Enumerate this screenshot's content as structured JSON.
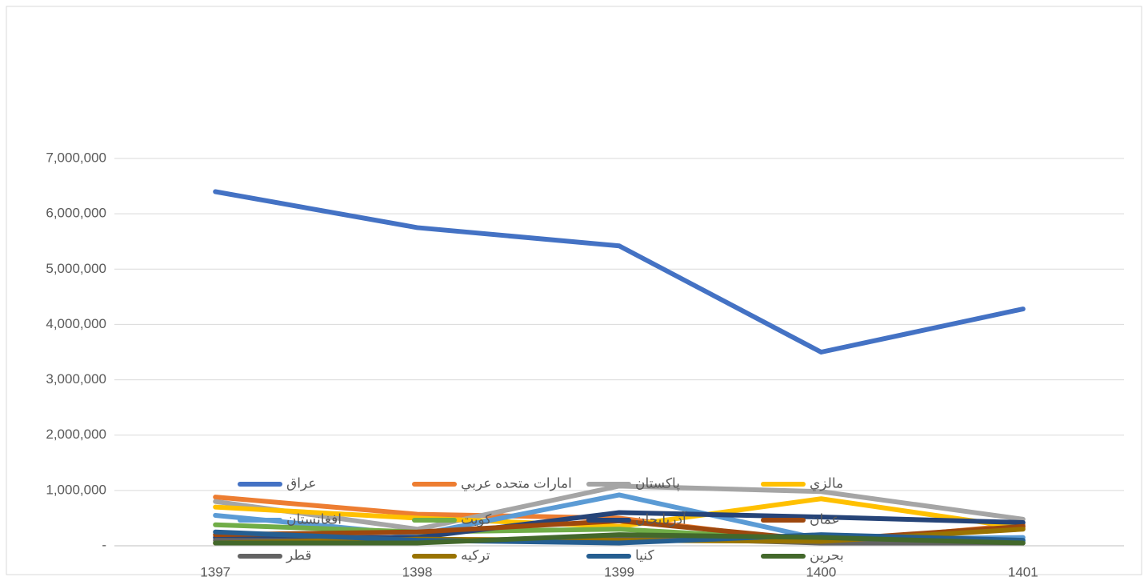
{
  "chart_data": {
    "type": "line",
    "categories": [
      "1397",
      "1398",
      "1399",
      "1400",
      "1401"
    ],
    "ylim": [
      0,
      7000000
    ],
    "yticks": [
      {
        "value": 0,
        "label": "-"
      },
      {
        "value": 1000000,
        "label": "1,000,000"
      },
      {
        "value": 2000000,
        "label": "2,000,000"
      },
      {
        "value": 3000000,
        "label": "3,000,000"
      },
      {
        "value": 4000000,
        "label": "4,000,000"
      },
      {
        "value": 5000000,
        "label": "5,000,000"
      },
      {
        "value": 6000000,
        "label": "6,000,000"
      },
      {
        "value": 7000000,
        "label": "7,000,000"
      }
    ],
    "grid": true,
    "legend": "bottom",
    "series": [
      {
        "name": "عراق",
        "color": "#4472c4",
        "values": [
          6400000,
          5750000,
          5420000,
          3500000,
          4280000
        ]
      },
      {
        "name": "امارات متحده عربي",
        "color": "#ed7d31",
        "values": [
          880000,
          570000,
          500000,
          50000,
          380000
        ]
      },
      {
        "name": "پاكستان",
        "color": "#a5a5a5",
        "values": [
          800000,
          300000,
          1080000,
          980000,
          480000
        ]
      },
      {
        "name": "مالزي",
        "color": "#ffc000",
        "values": [
          700000,
          500000,
          350000,
          850000,
          320000
        ]
      },
      {
        "name": "افغانستان",
        "color": "#5b9bd5",
        "values": [
          550000,
          200000,
          920000,
          120000,
          150000
        ]
      },
      {
        "name": "كويت",
        "color": "#70ad47",
        "values": [
          380000,
          250000,
          300000,
          100000,
          80000
        ]
      },
      {
        "name": "آذربايجان",
        "color": "#264478",
        "values": [
          150000,
          150000,
          600000,
          520000,
          420000
        ]
      },
      {
        "name": "عمان",
        "color": "#9e480e",
        "values": [
          200000,
          250000,
          450000,
          100000,
          350000
        ]
      },
      {
        "name": "قطر",
        "color": "#636363",
        "values": [
          100000,
          80000,
          150000,
          50000,
          50000
        ]
      },
      {
        "name": "تركيه",
        "color": "#997300",
        "values": [
          50000,
          120000,
          100000,
          80000,
          300000
        ]
      },
      {
        "name": "كنيا",
        "color": "#255e91",
        "values": [
          250000,
          100000,
          50000,
          200000,
          100000
        ]
      },
      {
        "name": "بحرين",
        "color": "#43682b",
        "values": [
          50000,
          50000,
          200000,
          150000,
          50000
        ]
      }
    ]
  }
}
